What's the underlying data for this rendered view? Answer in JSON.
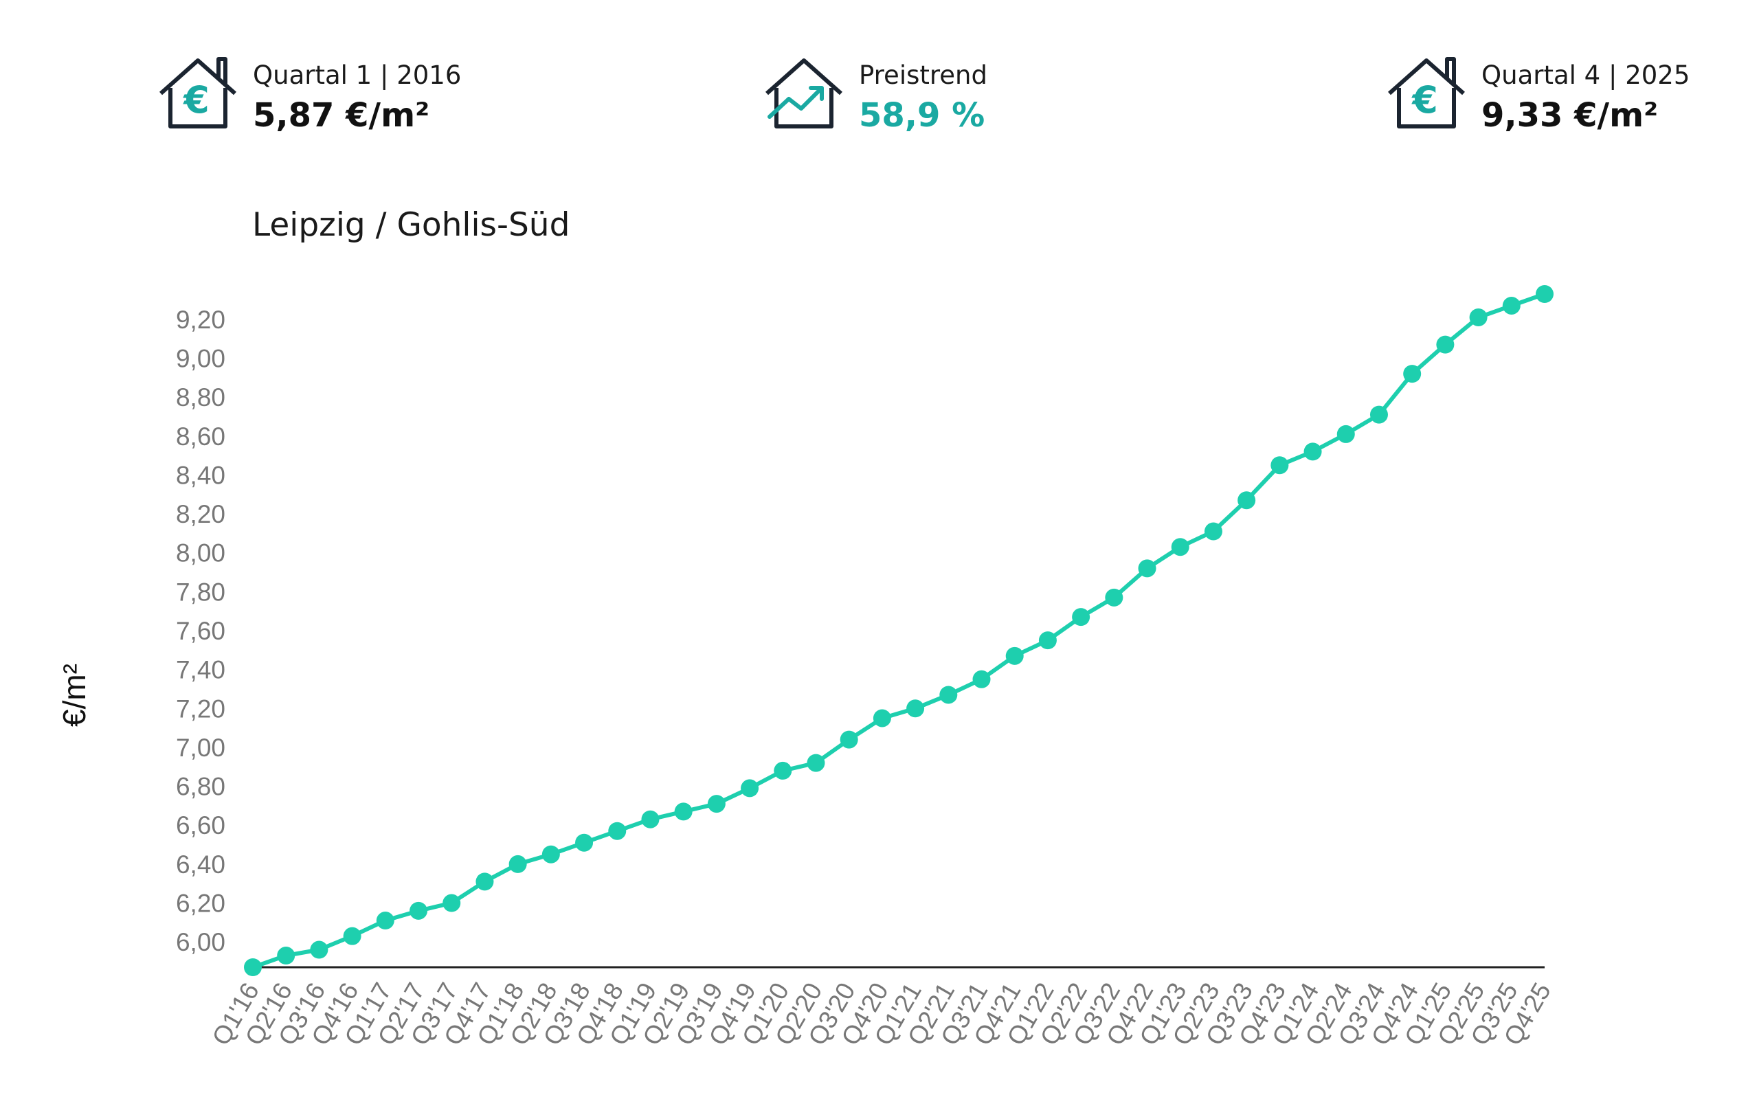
{
  "header": {
    "start": {
      "label": "Quartal 1 | 2016",
      "value": "5,87 €/m²",
      "icon": "house-euro-icon"
    },
    "trend": {
      "label": "Preistrend",
      "value": "58,9 %",
      "icon": "house-trend-icon"
    },
    "end": {
      "label": "Quartal 4 | 2025",
      "value": "9,33 €/m²",
      "icon": "house-euro-icon"
    }
  },
  "colors": {
    "accent": "#1ecfae",
    "accent_text": "#1aa9a2",
    "icon": "#1b2430",
    "axis": "#222222",
    "tick": "#777777"
  },
  "chart_data": {
    "type": "line",
    "title": "Leipzig / Gohlis-Süd",
    "xlabel": "",
    "ylabel": "€/m²",
    "ylim": [
      5.87,
      9.33
    ],
    "yticks": [
      6.0,
      6.2,
      6.4,
      6.6,
      6.8,
      7.0,
      7.2,
      7.4,
      7.6,
      7.8,
      8.0,
      8.2,
      8.4,
      8.6,
      8.8,
      9.0,
      9.2
    ],
    "ytick_labels": [
      "6,00",
      "6,20",
      "6,40",
      "6,60",
      "6,80",
      "7,00",
      "7,20",
      "7,40",
      "7,60",
      "7,80",
      "8,00",
      "8,20",
      "8,40",
      "8,60",
      "8,80",
      "9,00",
      "9,20"
    ],
    "grid": false,
    "categories": [
      "Q1'16",
      "Q2'16",
      "Q3'16",
      "Q4'16",
      "Q1'17",
      "Q2'17",
      "Q3'17",
      "Q4'17",
      "Q1'18",
      "Q2'18",
      "Q3'18",
      "Q4'18",
      "Q1'19",
      "Q2'19",
      "Q3'19",
      "Q4'19",
      "Q1'20",
      "Q2'20",
      "Q3'20",
      "Q4'20",
      "Q1'21",
      "Q2'21",
      "Q3'21",
      "Q4'21",
      "Q1'22",
      "Q2'22",
      "Q3'22",
      "Q4'22",
      "Q1'23",
      "Q2'23",
      "Q3'23",
      "Q4'23",
      "Q1'24",
      "Q2'24",
      "Q3'24",
      "Q4'24",
      "Q1'25",
      "Q2'25",
      "Q3'25",
      "Q4'25"
    ],
    "values": [
      5.87,
      5.93,
      5.96,
      6.03,
      6.11,
      6.16,
      6.2,
      6.31,
      6.4,
      6.45,
      6.51,
      6.57,
      6.63,
      6.67,
      6.71,
      6.79,
      6.88,
      6.92,
      7.04,
      7.15,
      7.2,
      7.27,
      7.35,
      7.47,
      7.55,
      7.67,
      7.77,
      7.92,
      8.03,
      8.11,
      8.27,
      8.45,
      8.52,
      8.61,
      8.71,
      8.92,
      9.07,
      9.21,
      9.27,
      9.33
    ]
  }
}
